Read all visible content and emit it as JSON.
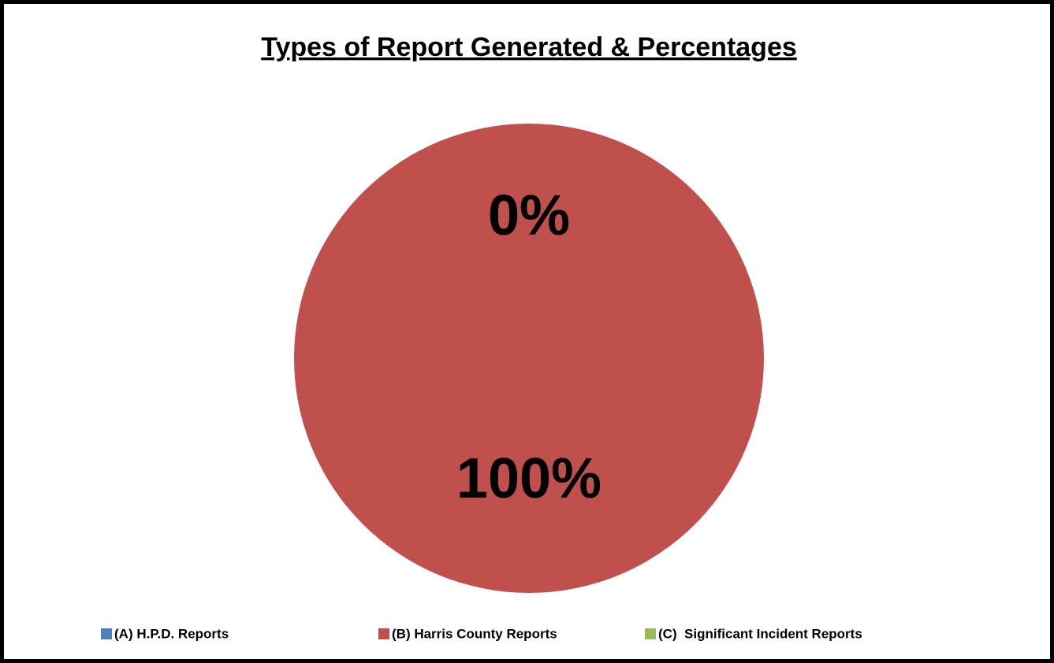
{
  "chart_data": {
    "type": "pie",
    "title": "Types of Report Generated & Percentages",
    "categories": [
      "(A) H.P.D. Reports",
      "(B) Harris County Reports",
      "(C)  Significant Incident Reports"
    ],
    "values": [
      0,
      100,
      0
    ],
    "value_labels": [
      "0%",
      "100%",
      "0%"
    ],
    "colors": [
      "#4f81bd",
      "#c0504d",
      "#9bbb59"
    ],
    "legend": "bottom"
  }
}
